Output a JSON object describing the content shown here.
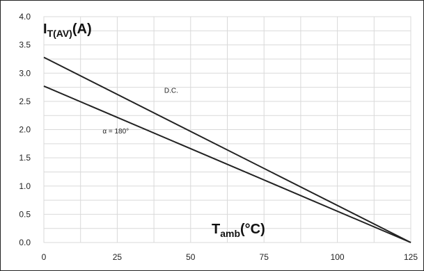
{
  "chart_data": {
    "type": "line",
    "x": [
      0,
      125
    ],
    "series": [
      {
        "values": [
          3.28,
          0.0
        ],
        "color": "#222222"
      },
      {
        "values": [
          2.77,
          0.0
        ],
        "color": "#222222"
      }
    ],
    "annotations": [
      {
        "text": "D.C.",
        "x": 41,
        "y": 2.65
      },
      {
        "text": "α = 180°",
        "x": 20,
        "y": 1.93
      }
    ],
    "ylabel": {
      "main": "I",
      "sub": "T(AV)",
      "unit": "(A)"
    },
    "xlabel": {
      "main": "T",
      "sub": "amb",
      "unit": "(°C)"
    },
    "xlim": [
      0,
      125
    ],
    "ylim": [
      0,
      4.0
    ],
    "xticks": [
      "0",
      "25",
      "50",
      "75",
      "100",
      "125"
    ],
    "yticks": [
      "0.0",
      "0.5",
      "1.0",
      "1.5",
      "2.0",
      "2.5",
      "3.0",
      "3.5",
      "4.0"
    ],
    "grid": true,
    "grid_color": "#d9d9d9",
    "line_color": "#222222"
  }
}
